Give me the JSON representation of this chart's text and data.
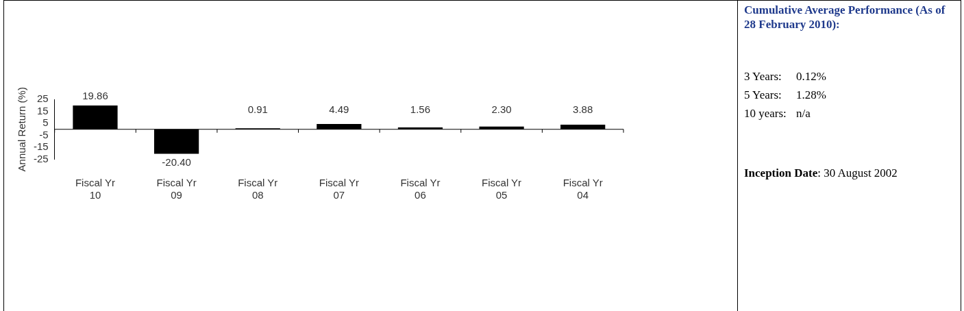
{
  "chart_data": [
    {
      "type": "bar",
      "ylabel": "Annual Return (%)",
      "categories": [
        "Fiscal Yr 10",
        "Fiscal Yr 09",
        "Fiscal Yr 08",
        "Fiscal Yr 07",
        "Fiscal Yr 06",
        "Fiscal Yr 05",
        "Fiscal Yr 04"
      ],
      "values": [
        19.86,
        -20.4,
        0.91,
        4.49,
        1.56,
        2.3,
        3.88
      ],
      "color": "#000000",
      "value_labels": [
        "19.86",
        "-20.40",
        "0.91",
        "4.49",
        "1.56",
        "2.30",
        "3.88"
      ],
      "ylim": [
        -25,
        25
      ],
      "yticks": [
        -25,
        -15,
        -5,
        5,
        15,
        25
      ],
      "grid": false,
      "legend": false
    },
    {
      "type": "other",
      "title": "Cumulative Average Performance (As of 28 February 2010):",
      "annotations": [
        "3 Years: 0.12%",
        "5 Years: 1.28%",
        "10 years: n/a",
        "Inception Date: 30 August 2002"
      ]
    }
  ]
}
